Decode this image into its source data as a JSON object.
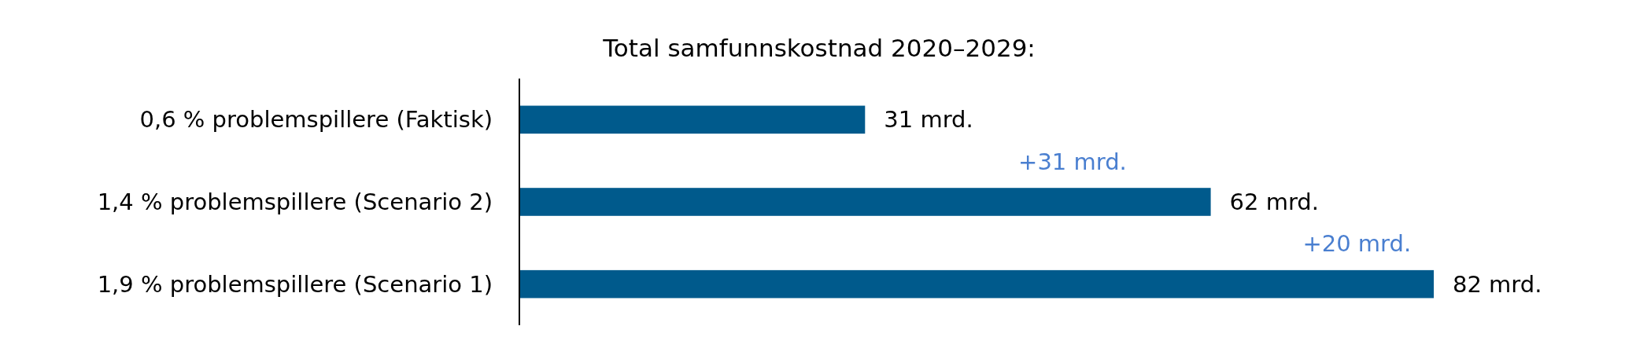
{
  "chart_data": {
    "type": "bar",
    "orientation": "horizontal",
    "title": "Total samfunnskostnad 2020–2029:",
    "categories": [
      "0,6 % problemspillere (Faktisk)",
      "1,4 % problemspillere (Scenario 2)",
      "1,9 % problemspillere (Scenario 1)"
    ],
    "values": [
      31,
      62,
      82
    ],
    "color": "#005a8c",
    "value_labels": [
      "31 mrd.",
      "62 mrd.",
      "82 mrd."
    ],
    "annotations": [
      "+31 mrd.",
      "+20 mrd."
    ]
  }
}
